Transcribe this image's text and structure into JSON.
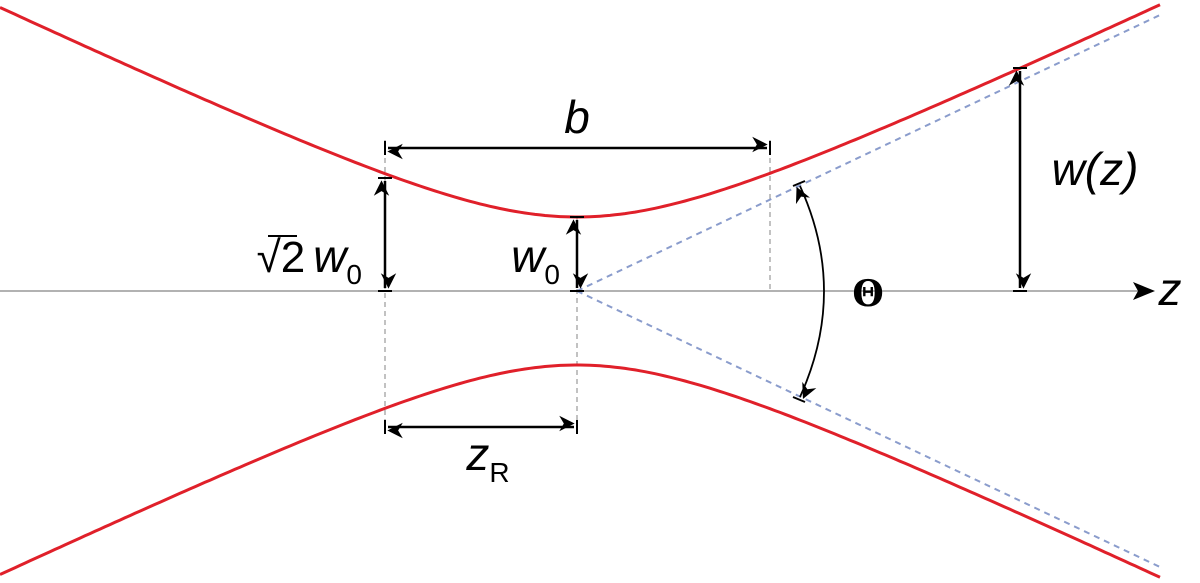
{
  "labels": {
    "b": "b",
    "w_z": "w(z)",
    "sqrt2_w0": {
      "root": "√2",
      "base": "w",
      "sub": "0"
    },
    "w0": {
      "base": "w",
      "sub": "0"
    },
    "z_R": {
      "base": "z",
      "sub": "R"
    },
    "theta": "Θ",
    "z_axis": "z"
  }
}
